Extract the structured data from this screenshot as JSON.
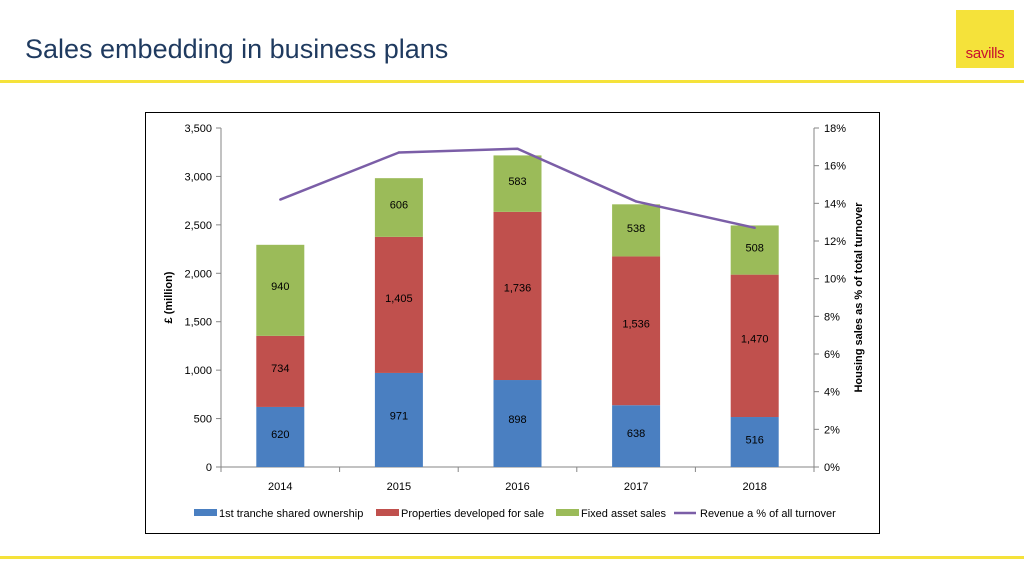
{
  "slide": {
    "title": "Sales embedding in business plans",
    "logo_text": "savills"
  },
  "colors": {
    "accent_yellow": "#f5e23a",
    "title_navy": "#1f3a5f",
    "logo_red": "#c8102e"
  },
  "chart_data": {
    "type": "bar",
    "stacked": true,
    "categories": [
      "2014",
      "2015",
      "2016",
      "2017",
      "2018"
    ],
    "series": [
      {
        "name": "1st tranche shared ownership",
        "color": "#4a7fc1",
        "values": [
          620,
          971,
          898,
          638,
          516
        ],
        "labels": [
          "620",
          "971",
          "898",
          "638",
          "516"
        ]
      },
      {
        "name": "Properties developed for sale",
        "color": "#c0504d",
        "values": [
          734,
          1405,
          1736,
          1536,
          1470
        ],
        "labels": [
          "734",
          "1,405",
          "1,736",
          "1,536",
          "1,470"
        ]
      },
      {
        "name": "Fixed asset sales",
        "color": "#9bbb59",
        "values": [
          940,
          606,
          583,
          538,
          508
        ],
        "labels": [
          "940",
          "606",
          "583",
          "538",
          "508"
        ]
      }
    ],
    "line_series": {
      "name": "Revenue a % of all turnover",
      "color": "#7b5ea7",
      "values": [
        14.2,
        16.7,
        16.9,
        14.1,
        12.7
      ],
      "axis": "right"
    },
    "ylabel": "£ (million)",
    "y2label": "Housing sales as % of total turnover",
    "ylim": [
      0,
      3500
    ],
    "y2lim": [
      0,
      18
    ],
    "yticks": [
      "0",
      "500",
      "1,000",
      "1,500",
      "2,000",
      "2,500",
      "3,000",
      "3,500"
    ],
    "y2ticks": [
      "0%",
      "2%",
      "4%",
      "6%",
      "8%",
      "10%",
      "12%",
      "14%",
      "16%",
      "18%"
    ],
    "grid": false,
    "legend_position": "bottom"
  }
}
